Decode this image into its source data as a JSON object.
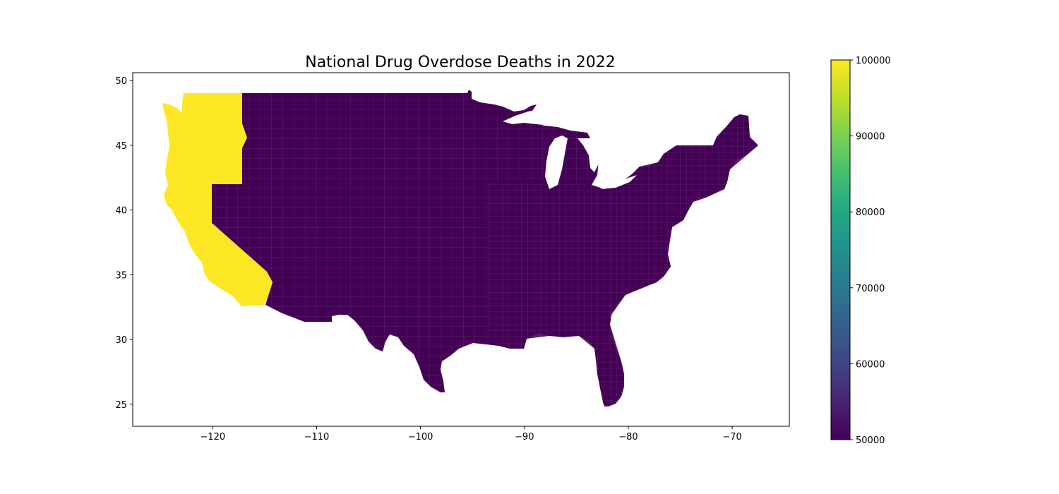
{
  "figure": {
    "title": "National Drug Overdose Deaths in 2022",
    "x_ticks": [
      "−120",
      "−110",
      "−100",
      "−90",
      "−80",
      "−70"
    ],
    "y_ticks": [
      "50",
      "45",
      "40",
      "35",
      "30",
      "25"
    ],
    "colorbar_ticks": [
      "100000",
      "90000",
      "80000",
      "70000",
      "60000",
      "50000"
    ]
  },
  "map_data": {
    "type": "choropleth",
    "region": "contiguous United States",
    "unit": "county",
    "xlim": [
      -127.7,
      -64.5
    ],
    "ylim": [
      23.3,
      50.6
    ],
    "x_tick_values": [
      -120,
      -110,
      -100,
      -90,
      -80,
      -70
    ],
    "y_tick_values": [
      50,
      45,
      40,
      35,
      30,
      25
    ],
    "colorbar": {
      "vmin": 50000,
      "vmax": 100000,
      "cmap": "viridis",
      "low_color": "#440154",
      "high_color": "#fde725"
    },
    "highlighted_states": [
      {
        "name": "Washington",
        "value": 100000
      },
      {
        "name": "Oregon",
        "value": 100000
      },
      {
        "name": "California",
        "value": 100000
      }
    ],
    "other_states_value": 50000
  }
}
